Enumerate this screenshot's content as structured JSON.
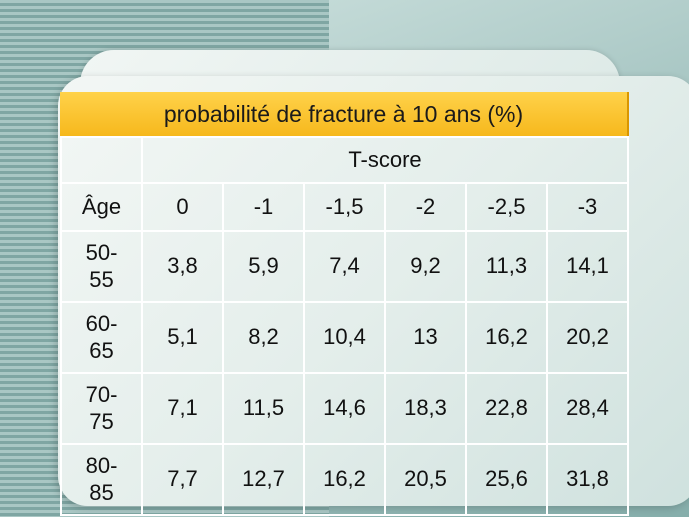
{
  "slide": {
    "title": "probabilité de fracture à 10 ans (%)",
    "group_header": "T-score",
    "age_header": "Âge",
    "tscore_columns": [
      "0",
      "-1",
      "-1,5",
      "-2",
      "-2,5",
      "-3"
    ],
    "rows": [
      {
        "age_top": "50-",
        "age_bottom": "55",
        "values": [
          "3,8",
          "5,9",
          "7,4",
          "9,2",
          "11,3",
          "14,1"
        ]
      },
      {
        "age_top": "60-",
        "age_bottom": "65",
        "values": [
          "5,1",
          "8,2",
          "10,4",
          "13",
          "16,2",
          "20,2"
        ]
      },
      {
        "age_top": "70-",
        "age_bottom": "75",
        "values": [
          "7,1",
          "11,5",
          "14,6",
          "18,3",
          "22,8",
          "28,4"
        ]
      },
      {
        "age_top": "80-",
        "age_bottom": "85",
        "values": [
          "7,7",
          "12,7",
          "16,2",
          "20,5",
          "25,6",
          "31,8"
        ]
      }
    ]
  },
  "colors": {
    "title_bar": "#f6b81c",
    "cell_border": "#ffffff",
    "card": "#e4eeeb"
  }
}
